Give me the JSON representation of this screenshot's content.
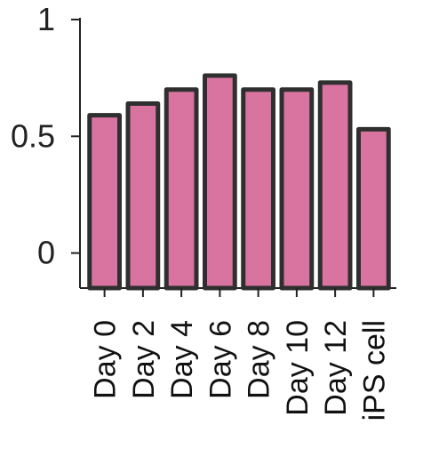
{
  "chart_data": {
    "type": "bar",
    "categories": [
      "Day 0",
      "Day 2",
      "Day 4",
      "Day 6",
      "Day 8",
      "Day 10",
      "Day 12",
      "iPS cell"
    ],
    "values": [
      0.59,
      0.64,
      0.7,
      0.76,
      0.7,
      0.7,
      0.73,
      0.53
    ],
    "title": "",
    "xlabel": "",
    "ylabel": "",
    "ylim": [
      -0.15,
      1.0
    ],
    "yticks": [
      0,
      0.5,
      1
    ],
    "ytick_labels": [
      "0",
      "0.5",
      "1"
    ],
    "grid": false,
    "bar_color": "#d9739f",
    "bar_edge_color": "#2f2f2f",
    "axis_color": "#222222"
  }
}
